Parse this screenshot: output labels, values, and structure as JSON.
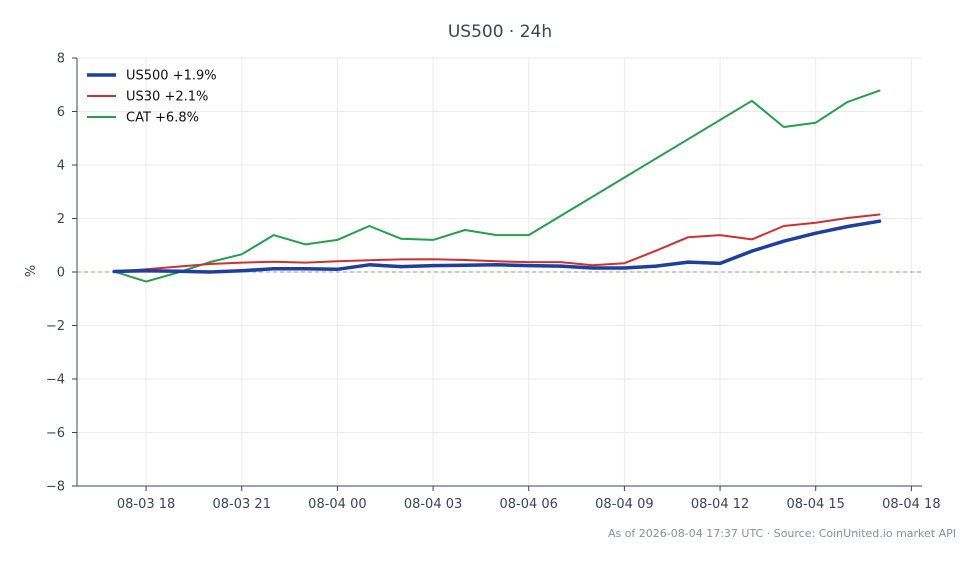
{
  "footer": "As of 2026-08-04 17:37 UTC · Source: CoinUnited.io market API",
  "chart_data": {
    "type": "line",
    "title": "US500 · 24h",
    "xlabel": "",
    "ylabel": "%",
    "ylim": [
      -8,
      8
    ],
    "yticks": [
      -8,
      -6,
      -4,
      -2,
      0,
      2,
      4,
      6,
      8
    ],
    "ytick_labels": [
      "−8",
      "−6",
      "−4",
      "−2",
      "0",
      "2",
      "4",
      "6",
      "8"
    ],
    "xlim": [
      "2026-08-03 15:50",
      "2026-08-04 18:20"
    ],
    "xticks": [
      "2026-08-03 18:00",
      "2026-08-03 21:00",
      "2026-08-04 00:00",
      "2026-08-04 03:00",
      "2026-08-04 06:00",
      "2026-08-04 09:00",
      "2026-08-04 12:00",
      "2026-08-04 15:00",
      "2026-08-04 18:00"
    ],
    "xtick_labels": [
      "08-03 18",
      "08-03 21",
      "08-04 00",
      "08-04 03",
      "08-04 06",
      "08-04 09",
      "08-04 12",
      "08-04 15",
      "08-04 18"
    ],
    "x": [
      "2026-08-03 17:00",
      "2026-08-03 18:00",
      "2026-08-03 19:00",
      "2026-08-03 20:00",
      "2026-08-03 21:00",
      "2026-08-03 22:00",
      "2026-08-03 23:00",
      "2026-08-04 00:00",
      "2026-08-04 01:00",
      "2026-08-04 02:00",
      "2026-08-04 03:00",
      "2026-08-04 04:00",
      "2026-08-04 05:00",
      "2026-08-04 06:00",
      "2026-08-04 07:00",
      "2026-08-04 08:00",
      "2026-08-04 09:00",
      "2026-08-04 10:00",
      "2026-08-04 11:00",
      "2026-08-04 12:00",
      "2026-08-04 13:00",
      "2026-08-04 14:00",
      "2026-08-04 15:00",
      "2026-08-04 16:00",
      "2026-08-04 17:00"
    ],
    "zero_line": true,
    "grid": true,
    "legend_position": "top-left",
    "series": [
      {
        "name": "US500 +1.9%",
        "color": "#1f3fa0",
        "width": 3.5,
        "values": [
          0.02,
          0.05,
          0.03,
          0.0,
          0.05,
          0.12,
          0.12,
          0.1,
          0.27,
          0.2,
          0.24,
          0.25,
          0.27,
          0.24,
          0.22,
          0.15,
          0.15,
          0.22,
          0.37,
          0.32,
          0.78,
          1.15,
          1.45,
          1.7,
          1.9
        ]
      },
      {
        "name": "US30 +2.1%",
        "color": "#d03030",
        "width": 2,
        "values": [
          0.02,
          0.1,
          0.2,
          0.3,
          0.35,
          0.38,
          0.35,
          0.4,
          0.44,
          0.47,
          0.48,
          0.45,
          0.4,
          0.37,
          0.37,
          0.25,
          0.33,
          0.8,
          1.3,
          1.38,
          1.22,
          1.72,
          1.84,
          2.02,
          2.15
        ]
      },
      {
        "name": "CAT +6.8%",
        "color": "#22a04b",
        "width": 2,
        "values": [
          0.02,
          -0.36,
          -0.02,
          0.37,
          0.66,
          1.38,
          1.03,
          1.2,
          1.72,
          1.24,
          1.2,
          1.57,
          1.38,
          1.38,
          null,
          null,
          null,
          null,
          null,
          null,
          6.4,
          5.42,
          5.58,
          6.36,
          6.78
        ]
      }
    ]
  }
}
